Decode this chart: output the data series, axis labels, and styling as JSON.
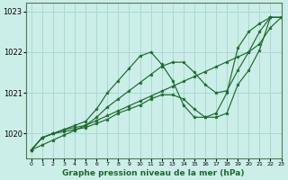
{
  "xlabel": "Graphe pression niveau de la mer (hPa)",
  "background_color": "#cceee8",
  "grid_color": "#aad8d4",
  "line_color": "#1a6b2a",
  "marker_color": "#1a6b2a",
  "xlim": [
    -0.5,
    23
  ],
  "ylim": [
    1019.4,
    1023.2
  ],
  "yticks": [
    1020,
    1021,
    1022,
    1023
  ],
  "xticks": [
    0,
    1,
    2,
    3,
    4,
    5,
    6,
    7,
    8,
    9,
    10,
    11,
    12,
    13,
    14,
    15,
    16,
    17,
    18,
    19,
    20,
    21,
    22,
    23
  ],
  "series": [
    [
      1019.6,
      1019.9,
      1020.0,
      1020.1,
      1020.2,
      1020.3,
      1020.6,
      1021.0,
      1021.3,
      1021.6,
      1021.9,
      1022.0,
      1021.7,
      1021.3,
      1020.7,
      1020.4,
      1020.4,
      1020.5,
      1021.0,
      1022.1,
      1022.5,
      1022.7,
      1022.85,
      1022.85
    ],
    [
      1019.6,
      1019.9,
      1020.0,
      1020.1,
      1020.15,
      1020.2,
      1020.4,
      1020.65,
      1020.85,
      1021.05,
      1021.25,
      1021.45,
      1021.65,
      1021.75,
      1021.75,
      1021.5,
      1021.2,
      1021.0,
      1021.05,
      1021.55,
      1022.0,
      1022.5,
      1022.85,
      1022.85
    ],
    [
      1019.6,
      1019.9,
      1020.0,
      1020.05,
      1020.1,
      1020.15,
      1020.25,
      1020.35,
      1020.5,
      1020.6,
      1020.7,
      1020.85,
      1020.95,
      1020.95,
      1020.85,
      1020.6,
      1020.4,
      1020.4,
      1020.5,
      1021.2,
      1021.55,
      1022.05,
      1022.85,
      1022.85
    ],
    [
      1019.6,
      1019.72,
      1019.84,
      1019.96,
      1020.08,
      1020.2,
      1020.32,
      1020.44,
      1020.56,
      1020.68,
      1020.8,
      1020.92,
      1021.04,
      1021.16,
      1021.28,
      1021.4,
      1021.52,
      1021.64,
      1021.76,
      1021.88,
      1022.0,
      1022.2,
      1022.6,
      1022.85
    ]
  ]
}
